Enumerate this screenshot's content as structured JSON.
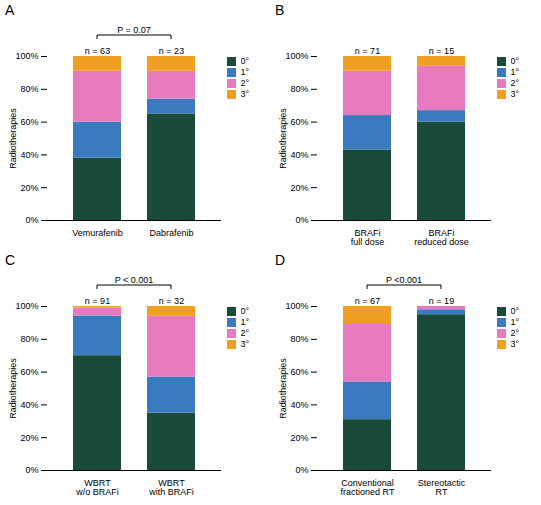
{
  "chart_data": [
    {
      "type": "bar",
      "stacked": true,
      "title": "A",
      "categories": [
        "Vemurafenib",
        "Dabrafenib"
      ],
      "series": [
        {
          "name": "0°",
          "color": "#1a4a3a",
          "values": [
            38,
            65
          ]
        },
        {
          "name": "1°",
          "color": "#3a7abf",
          "values": [
            22,
            9
          ]
        },
        {
          "name": "2°",
          "color": "#e87abf",
          "values": [
            31,
            17
          ]
        },
        {
          "name": "3°",
          "color": "#f0a020",
          "values": [
            9,
            9
          ]
        }
      ],
      "ylabel": "Radiotherapies",
      "ylim": [
        0,
        100
      ],
      "yticks": [
        {
          "value": 0,
          "label": "0%"
        },
        {
          "value": 20,
          "label": "20%"
        },
        {
          "value": 40,
          "label": "40%"
        },
        {
          "value": 60,
          "label": "60%"
        },
        {
          "value": 80,
          "label": "80%"
        },
        {
          "value": 100,
          "label": "100%"
        }
      ],
      "legend": "right",
      "annotations": [
        {
          "text": "n = 63",
          "x": "Vemurafenib"
        },
        {
          "text": "n = 23",
          "x": "Dabrafenib"
        },
        {
          "text": "P = 0.07",
          "x": [
            "Vemurafenib",
            "Dabrafenib"
          ]
        }
      ]
    },
    {
      "type": "bar",
      "stacked": true,
      "title": "B",
      "categories": [
        "BRAFi\nfull dose",
        "BRAFi\nreduced dose"
      ],
      "series": [
        {
          "name": "0°",
          "color": "#1a4a3a",
          "values": [
            43,
            60
          ]
        },
        {
          "name": "1°",
          "color": "#3a7abf",
          "values": [
            21,
            7
          ]
        },
        {
          "name": "2°",
          "color": "#e87abf",
          "values": [
            27,
            27
          ]
        },
        {
          "name": "3°",
          "color": "#f0a020",
          "values": [
            9,
            6
          ]
        }
      ],
      "ylabel": "Radiotherapies",
      "ylim": [
        0,
        100
      ],
      "yticks": [
        {
          "value": 0,
          "label": "0%"
        },
        {
          "value": 20,
          "label": "20%"
        },
        {
          "value": 40,
          "label": "40%"
        },
        {
          "value": 60,
          "label": "60%"
        },
        {
          "value": 80,
          "label": "80%"
        },
        {
          "value": 100,
          "label": "100%"
        }
      ],
      "legend": "right",
      "annotations": [
        {
          "text": "n = 71",
          "x": "BRAFi\nfull dose"
        },
        {
          "text": "n = 15",
          "x": "BRAFi\nreduced dose"
        }
      ]
    },
    {
      "type": "bar",
      "stacked": true,
      "title": "C",
      "categories": [
        "WBRT\nw/o BRAFi",
        "WBRT\nwith BRAFi"
      ],
      "series": [
        {
          "name": "0°",
          "color": "#1a4a3a",
          "values": [
            70,
            35
          ]
        },
        {
          "name": "1°",
          "color": "#3a7abf",
          "values": [
            24,
            22
          ]
        },
        {
          "name": "2°",
          "color": "#e87abf",
          "values": [
            5,
            37
          ]
        },
        {
          "name": "3°",
          "color": "#f0a020",
          "values": [
            1,
            6
          ]
        }
      ],
      "ylabel": "Radiotherapies",
      "ylim": [
        0,
        100
      ],
      "yticks": [
        {
          "value": 0,
          "label": "0%"
        },
        {
          "value": 20,
          "label": "20%"
        },
        {
          "value": 40,
          "label": "40%"
        },
        {
          "value": 60,
          "label": "60%"
        },
        {
          "value": 80,
          "label": "80%"
        },
        {
          "value": 100,
          "label": "100%"
        }
      ],
      "legend": "right",
      "annotations": [
        {
          "text": "n = 91",
          "x": "WBRT\nw/o BRAFi"
        },
        {
          "text": "n = 32",
          "x": "WBRT\nwith BRAFi"
        },
        {
          "text": "P < 0.001",
          "x": [
            "WBRT\nw/o BRAFi",
            "WBRT\nwith BRAFi"
          ]
        }
      ]
    },
    {
      "type": "bar",
      "stacked": true,
      "title": "D",
      "categories": [
        "Conventional\nfractioned RT",
        "Stereotactic\nRT"
      ],
      "series": [
        {
          "name": "0°",
          "color": "#1a4a3a",
          "values": [
            31,
            95
          ]
        },
        {
          "name": "1°",
          "color": "#3a7abf",
          "values": [
            23,
            3
          ]
        },
        {
          "name": "2°",
          "color": "#e87abf",
          "values": [
            35,
            2
          ]
        },
        {
          "name": "3°",
          "color": "#f0a020",
          "values": [
            11,
            0
          ]
        }
      ],
      "ylabel": "Radiotherapies",
      "ylim": [
        0,
        100
      ],
      "yticks": [
        {
          "value": 0,
          "label": "0%"
        },
        {
          "value": 20,
          "label": "20%"
        },
        {
          "value": 40,
          "label": "40%"
        },
        {
          "value": 60,
          "label": "60%"
        },
        {
          "value": 80,
          "label": "80%"
        },
        {
          "value": 100,
          "label": "100%"
        }
      ],
      "legend": "right",
      "annotations": [
        {
          "text": "n = 67",
          "x": "Conventional\nfractioned RT"
        },
        {
          "text": "n = 19",
          "x": "Stereotactic\nRT"
        },
        {
          "text": "P <0.001",
          "x": [
            "Conventional\nfractioned RT",
            "Stereotactic\nRT"
          ]
        }
      ]
    }
  ]
}
